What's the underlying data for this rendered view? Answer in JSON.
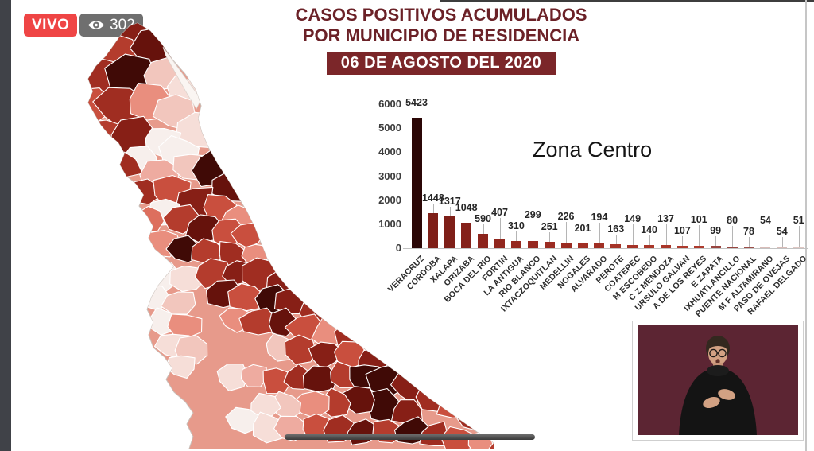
{
  "live_badge": {
    "label": "VIVO",
    "viewers": "302"
  },
  "header": {
    "title_line1": "CASOS POSITIVOS ACUMULADOS",
    "title_line2": "POR MUNICIPIO DE RESIDENCIA",
    "date_banner": "06 DE AGOSTO DEL 2020"
  },
  "chart_data": {
    "type": "bar",
    "title": "Zona Centro",
    "xlabel": "",
    "ylabel": "",
    "ylim": [
      0,
      6000
    ],
    "yticks": [
      0,
      1000,
      2000,
      3000,
      4000,
      5000,
      6000
    ],
    "grid": false,
    "legend_position": "none",
    "categories": [
      "VERACRUZ",
      "CORDOBA",
      "XALAPA",
      "ORIZABA",
      "BOCA DEL RIO",
      "FORTIN",
      "LA ANTIGUA",
      "RIO BLANCO",
      "IXTACZOQUITLAN",
      "MEDELLIN",
      "NOGALES",
      "ALVARADO",
      "PEROTE",
      "COATEPEC",
      "M ESCOBEDO",
      "C Z MENDOZA",
      "URSULO GALVAN",
      "A DE LOS REYES",
      "E ZAPATA",
      "IXHUATLANCILLO",
      "PUENTE NACIONAL",
      "M F ALTAMIRANO",
      "PASO DE OVEJAS",
      "RAFAEL DELGADO"
    ],
    "values": [
      5423,
      1448,
      1317,
      1048,
      590,
      407,
      310,
      299,
      251,
      226,
      201,
      194,
      163,
      149,
      140,
      137,
      107,
      101,
      99,
      80,
      78,
      54,
      54,
      51
    ],
    "bar_colors": [
      "#2b0706",
      "#7e1f18",
      "#7e1f18",
      "#84211a",
      "#8c241c",
      "#91271e",
      "#962920",
      "#962920",
      "#9b2c22",
      "#9b2c22",
      "#a02f24",
      "#a02f24",
      "#a53327",
      "#a53327",
      "#a93629",
      "#a93629",
      "#ad3a2d",
      "#ad3a2d",
      "#984540",
      "#984540",
      "#9c4f4a",
      "#d9bcb8",
      "#d9bcb8",
      "#dfc7c3"
    ]
  },
  "map": {
    "name": "veracruz-municipalities-choropleth",
    "base_color": "#e79a8b",
    "palette": [
      "#f7efec",
      "#f6ded8",
      "#f2c6bd",
      "#eeaba0",
      "#e98e7e",
      "#dd6f5e",
      "#c94f3e",
      "#b43c2d",
      "#a02d21",
      "#871f16",
      "#66120c",
      "#400a06"
    ],
    "cells": [
      [
        118,
        22,
        26,
        9
      ],
      [
        92,
        40,
        22,
        7
      ],
      [
        142,
        36,
        24,
        10
      ],
      [
        70,
        72,
        24,
        8
      ],
      [
        112,
        72,
        26,
        11
      ],
      [
        150,
        70,
        20,
        2
      ],
      [
        175,
        88,
        16,
        1
      ],
      [
        60,
        110,
        22,
        6
      ],
      [
        95,
        108,
        24,
        8
      ],
      [
        130,
        105,
        22,
        4
      ],
      [
        165,
        115,
        24,
        2
      ],
      [
        195,
        140,
        22,
        1
      ],
      [
        75,
        145,
        22,
        7
      ],
      [
        110,
        148,
        24,
        9
      ],
      [
        145,
        150,
        18,
        0
      ],
      [
        170,
        165,
        18,
        0
      ],
      [
        120,
        178,
        18,
        0
      ],
      [
        95,
        182,
        20,
        8
      ],
      [
        145,
        195,
        20,
        3
      ],
      [
        182,
        185,
        18,
        2
      ],
      [
        212,
        185,
        22,
        11
      ],
      [
        232,
        210,
        20,
        10
      ],
      [
        125,
        215,
        18,
        8
      ],
      [
        158,
        218,
        20,
        6
      ],
      [
        188,
        228,
        20,
        9
      ],
      [
        218,
        238,
        18,
        6
      ],
      [
        245,
        250,
        18,
        4
      ],
      [
        150,
        242,
        16,
        0
      ],
      [
        130,
        250,
        16,
        5
      ],
      [
        172,
        252,
        18,
        7
      ],
      [
        200,
        262,
        18,
        10
      ],
      [
        228,
        268,
        16,
        6
      ],
      [
        254,
        272,
        16,
        6
      ],
      [
        148,
        280,
        16,
        4
      ],
      [
        175,
        288,
        16,
        11
      ],
      [
        205,
        292,
        18,
        7
      ],
      [
        235,
        295,
        16,
        8
      ],
      [
        263,
        295,
        16,
        4
      ],
      [
        150,
        322,
        16,
        0
      ],
      [
        178,
        325,
        16,
        1
      ],
      [
        140,
        350,
        16,
        0
      ],
      [
        168,
        355,
        16,
        2
      ],
      [
        148,
        380,
        16,
        0
      ],
      [
        175,
        385,
        16,
        4
      ],
      [
        160,
        408,
        16,
        1
      ],
      [
        185,
        415,
        16,
        2
      ],
      [
        170,
        435,
        14,
        1
      ],
      [
        210,
        318,
        18,
        7
      ],
      [
        242,
        318,
        18,
        9
      ],
      [
        272,
        318,
        18,
        8
      ],
      [
        300,
        330,
        20,
        9
      ],
      [
        225,
        345,
        18,
        10
      ],
      [
        255,
        348,
        18,
        6
      ],
      [
        285,
        352,
        18,
        11
      ],
      [
        315,
        355,
        18,
        9
      ],
      [
        345,
        368,
        20,
        8
      ],
      [
        240,
        375,
        16,
        4
      ],
      [
        268,
        380,
        16,
        7
      ],
      [
        298,
        382,
        16,
        10
      ],
      [
        328,
        390,
        18,
        6
      ],
      [
        358,
        392,
        18,
        4
      ],
      [
        388,
        398,
        18,
        8
      ],
      [
        295,
        412,
        16,
        2
      ],
      [
        322,
        415,
        16,
        7
      ],
      [
        352,
        420,
        16,
        9
      ],
      [
        382,
        422,
        16,
        6
      ],
      [
        412,
        428,
        18,
        9
      ],
      [
        235,
        448,
        16,
        1
      ],
      [
        262,
        448,
        16,
        3
      ],
      [
        290,
        452,
        16,
        6
      ],
      [
        318,
        452,
        16,
        8
      ],
      [
        346,
        452,
        16,
        10
      ],
      [
        374,
        448,
        16,
        7
      ],
      [
        402,
        448,
        18,
        11
      ],
      [
        432,
        452,
        20,
        11
      ],
      [
        460,
        462,
        18,
        9
      ],
      [
        488,
        472,
        18,
        8
      ],
      [
        515,
        485,
        18,
        6
      ],
      [
        542,
        498,
        18,
        8
      ],
      [
        425,
        485,
        18,
        11
      ],
      [
        455,
        492,
        16,
        9
      ],
      [
        395,
        478,
        16,
        10
      ],
      [
        365,
        482,
        16,
        7
      ],
      [
        335,
        482,
        16,
        4
      ],
      [
        305,
        485,
        16,
        2
      ],
      [
        275,
        488,
        16,
        1
      ],
      [
        250,
        502,
        16,
        0
      ],
      [
        280,
        512,
        16,
        1
      ],
      [
        310,
        515,
        16,
        3
      ],
      [
        340,
        512,
        16,
        6
      ],
      [
        370,
        515,
        16,
        8
      ],
      [
        400,
        518,
        16,
        10
      ],
      [
        430,
        518,
        16,
        7
      ],
      [
        460,
        518,
        16,
        11
      ],
      [
        490,
        522,
        16,
        8
      ],
      [
        520,
        528,
        16,
        6
      ],
      [
        548,
        532,
        14,
        4
      ],
      [
        575,
        538,
        14,
        7
      ]
    ]
  },
  "colors": {
    "live_red": "#ef4545",
    "viewer_gray": "#6f6f6f",
    "accent_maroon": "#6b2127",
    "banner_bg": "#7b2629",
    "scrubber_gray": "#4a4a4c",
    "bar_darkest": "#2b0706",
    "interpreter_bg": "#5c2533"
  },
  "interpreter": {
    "label": "sign-language-interpreter"
  }
}
